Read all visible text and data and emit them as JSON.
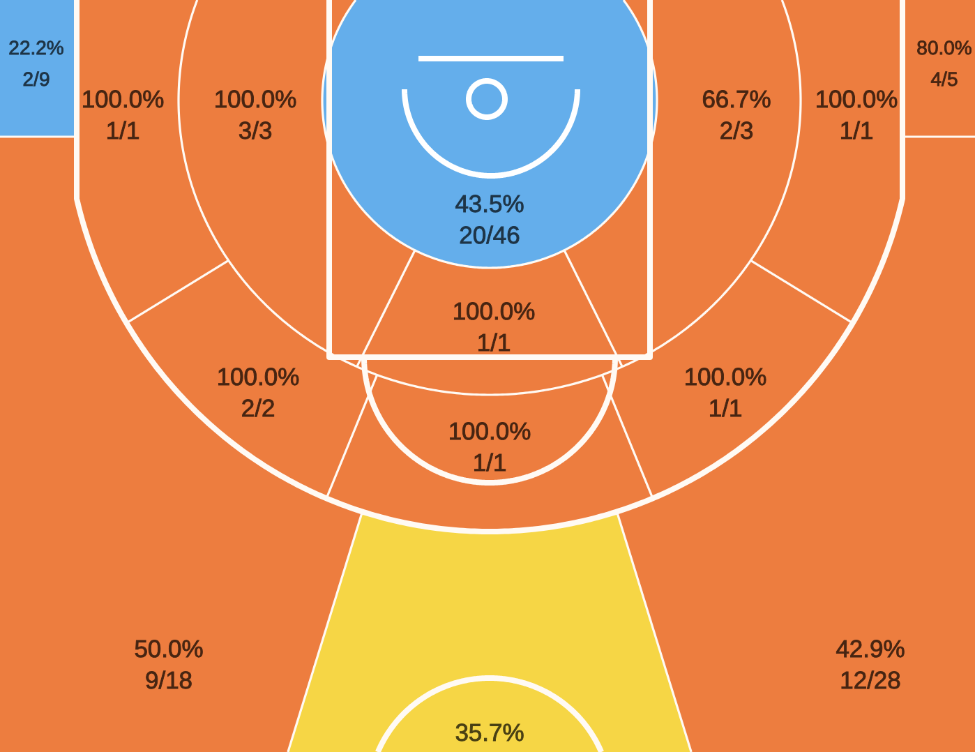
{
  "chart_data": {
    "type": "other",
    "values": [
      22.2,
      80.0,
      100.0,
      100.0,
      66.7,
      100.0,
      43.5,
      100.0,
      100.0,
      100.0,
      100.0,
      50.0,
      42.9,
      35.7
    ],
    "value_labels": [
      "22.2%\n2/9",
      "80.0%\n4/5",
      "100.0%\n1/1",
      "100.0%\n3/3",
      "66.7%\n2/3",
      "100.0%\n1/1",
      "43.5%\n20/46",
      "100.0%\n1/1",
      "100.0%\n2/2",
      "100.0%\n1/1",
      "100.0%\n1/1",
      "50.0%\n9/18",
      "42.9%\n12/28",
      "35.7%"
    ],
    "colors": [
      "#64aeeb",
      "#ed7d3f",
      "#ed7d3f",
      "#ed7d3f",
      "#ed7d3f",
      "#ed7d3f",
      "#64aeeb",
      "#ed7d3f",
      "#ed7d3f",
      "#ed7d3f",
      "#ed7d3f",
      "#ed7d3f",
      "#ed7d3f",
      "#f6d645"
    ]
  }
}
